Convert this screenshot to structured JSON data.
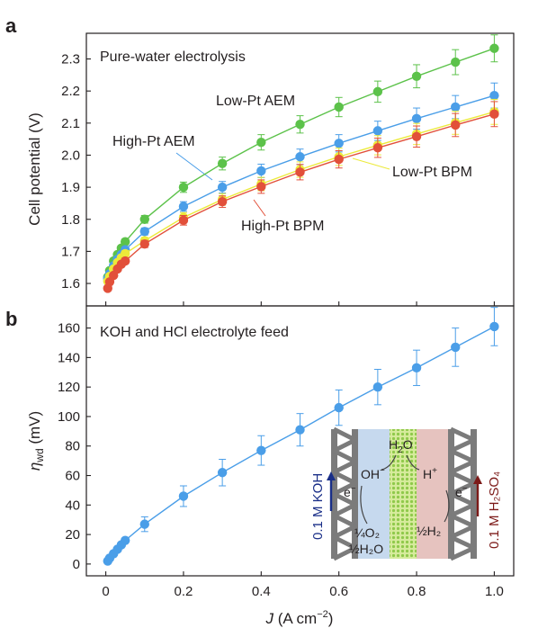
{
  "panels": {
    "a_letter": "a",
    "b_letter": "b",
    "a_title": "Pure-water electrolysis",
    "b_title": "KOH and HCl electrolyte feed"
  },
  "axes": {
    "a_ylabel": "Cell potential (V)",
    "b_ylabel_main": "η",
    "b_ylabel_sub": "wd",
    "b_ylabel_unit": " (mV)",
    "xlabel_main": "J",
    "xlabel_unit": " (A cm",
    "xlabel_sup": "−2",
    "xlabel_close": ")"
  },
  "colors": {
    "green": "#5cc24a",
    "blue": "#4a9ee8",
    "yellow": "#ecea3a",
    "red": "#e2503a",
    "axis": "#231f20",
    "membrane_blue": "#c6d9ee",
    "membrane_pink": "#e6c3bf",
    "catalyst_green": "#d6eb9c",
    "catalyst_dot": "#8fc94a",
    "frame_gray": "#7b7b7b",
    "koh_text": "#1a2f88",
    "h2so4_text": "#7c1a18"
  },
  "chart_data": [
    {
      "type": "line",
      "title": "Pure-water electrolysis",
      "xlabel": "J (A cm−2)",
      "ylabel": "Cell potential (V)",
      "xlim": [
        -0.05,
        1.05
      ],
      "ylim": [
        1.53,
        2.38
      ],
      "xticks": [
        0,
        0.2,
        0.4,
        0.6,
        0.8,
        1.0
      ],
      "xtick_labels": [
        "0",
        "0.2",
        "0.4",
        "0.6",
        "0.8",
        "1.0"
      ],
      "yticks": [
        1.6,
        1.7,
        1.8,
        1.9,
        2.0,
        2.1,
        2.2,
        2.3
      ],
      "ytick_labels": [
        "1.6",
        "1.7",
        "1.8",
        "1.9",
        "2.0",
        "2.1",
        "2.2",
        "2.3"
      ],
      "x": [
        0.005,
        0.01,
        0.02,
        0.03,
        0.04,
        0.05,
        0.1,
        0.2,
        0.3,
        0.4,
        0.5,
        0.6,
        0.7,
        0.8,
        0.9,
        1.0
      ],
      "series": [
        {
          "name": "Low-Pt AEM",
          "color": "green",
          "values": [
            1.62,
            1.64,
            1.67,
            1.69,
            1.71,
            1.73,
            1.8,
            1.9,
            1.974,
            2.04,
            2.096,
            2.15,
            2.198,
            2.246,
            2.29,
            2.333
          ],
          "errors": [
            0.005,
            0.005,
            0.006,
            0.007,
            0.008,
            0.009,
            0.012,
            0.016,
            0.02,
            0.024,
            0.027,
            0.03,
            0.033,
            0.036,
            0.039,
            0.042
          ]
        },
        {
          "name": "High-Pt AEM",
          "color": "blue",
          "values": [
            1.615,
            1.63,
            1.655,
            1.675,
            1.69,
            1.705,
            1.762,
            1.84,
            1.9,
            1.951,
            1.995,
            2.037,
            2.076,
            2.114,
            2.15,
            2.186
          ],
          "errors": [
            0.005,
            0.005,
            0.006,
            0.007,
            0.008,
            0.009,
            0.011,
            0.015,
            0.018,
            0.021,
            0.024,
            0.027,
            0.03,
            0.033,
            0.036,
            0.039
          ]
        },
        {
          "name": "Low-Pt BPM",
          "color": "yellow",
          "values": [
            1.607,
            1.622,
            1.645,
            1.665,
            1.68,
            1.693,
            1.733,
            1.806,
            1.862,
            1.91,
            1.955,
            1.995,
            2.031,
            2.066,
            2.101,
            2.135
          ],
          "errors": [
            0.005,
            0.005,
            0.006,
            0.007,
            0.008,
            0.009,
            0.011,
            0.015,
            0.018,
            0.021,
            0.024,
            0.027,
            0.03,
            0.033,
            0.036,
            0.039
          ]
        },
        {
          "name": "High-Pt BPM",
          "color": "red",
          "values": [
            1.585,
            1.605,
            1.625,
            1.645,
            1.66,
            1.67,
            1.723,
            1.797,
            1.855,
            1.902,
            1.947,
            1.987,
            2.023,
            2.058,
            2.094,
            2.128
          ],
          "errors": [
            0.005,
            0.005,
            0.006,
            0.007,
            0.008,
            0.009,
            0.011,
            0.015,
            0.018,
            0.021,
            0.024,
            0.027,
            0.03,
            0.033,
            0.036,
            0.039
          ]
        }
      ]
    },
    {
      "type": "line",
      "title": "KOH and HCl electrolyte feed",
      "xlabel": "J (A cm−2)",
      "ylabel": "ηwd (mV)",
      "xlim": [
        -0.05,
        1.05
      ],
      "ylim": [
        -8,
        175
      ],
      "xticks": [
        0,
        0.2,
        0.4,
        0.6,
        0.8,
        1.0
      ],
      "xtick_labels": [
        "0",
        "0.2",
        "0.4",
        "0.6",
        "0.8",
        "1.0"
      ],
      "yticks": [
        0,
        20,
        40,
        60,
        80,
        100,
        120,
        140,
        160
      ],
      "ytick_labels": [
        "0",
        "20",
        "40",
        "60",
        "80",
        "100",
        "120",
        "140",
        "160"
      ],
      "x": [
        0.005,
        0.01,
        0.02,
        0.03,
        0.04,
        0.05,
        0.1,
        0.2,
        0.3,
        0.4,
        0.5,
        0.6,
        0.7,
        0.8,
        0.9,
        1.0
      ],
      "series": [
        {
          "name": "ηwd",
          "color": "blue",
          "values": [
            2,
            4,
            7,
            10,
            13,
            16,
            27,
            46,
            62,
            77,
            91,
            106,
            120,
            133,
            147,
            161
          ],
          "errors": [
            0.5,
            0.7,
            1,
            1.2,
            1.5,
            1.8,
            5,
            7,
            9,
            10,
            11,
            12,
            12,
            12,
            13,
            13
          ]
        }
      ]
    }
  ],
  "series_labels": {
    "low_pt_aem": "Low-Pt AEM",
    "high_pt_aem": "High-Pt AEM",
    "low_pt_bpm": "Low-Pt BPM",
    "high_pt_bpm": "High-Pt BPM"
  },
  "inset": {
    "h2o": "H",
    "h2o_sub": "2",
    "h2o_tail": "O",
    "oh": "OH",
    "oh_sup": "−",
    "h": "H",
    "h_sup": "+",
    "e_left": "e",
    "e_left_sup": "−",
    "e_right": "e",
    "e_right_sup": "−",
    "o2_prod": "¼O₂",
    "h2o_prod": "½H₂O",
    "h2_prod": "½H₂",
    "koh_label": "0.1 M KOH",
    "h2so4_label": "0.1 M H₂SO₄"
  }
}
